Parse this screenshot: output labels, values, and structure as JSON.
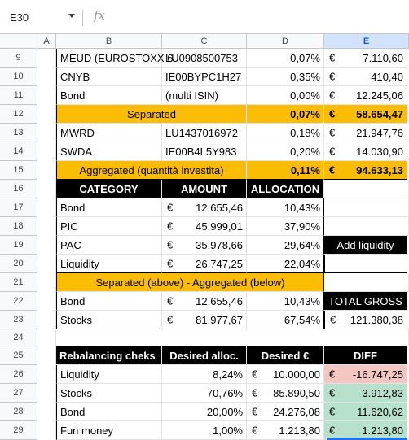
{
  "name_box": "E30",
  "fx_label": "fx",
  "columns": [
    "A",
    "B",
    "C",
    "D",
    "E"
  ],
  "rows": [
    "9",
    "10",
    "11",
    "12",
    "13",
    "14",
    "15",
    "16",
    "17",
    "18",
    "19",
    "20",
    "21",
    "22",
    "23",
    "24",
    "25",
    "26",
    "27",
    "28",
    "29"
  ],
  "currency": "€",
  "r9": {
    "b": "MEUD (EUROSTOXX 6",
    "c": "LU0908500753",
    "d": "0,07%",
    "e": "7.110,60"
  },
  "r10": {
    "b": "CNYB",
    "c": "IE00BYPC1H27",
    "d": "0,35%",
    "e": "410,40"
  },
  "r11": {
    "b": "Bond",
    "c": "(multi ISIN)",
    "d": "0,00%",
    "e": "12.245,06"
  },
  "r12": {
    "bc": "Separated",
    "d": "0,07%",
    "e": "58.654,47"
  },
  "r13": {
    "b": "MWRD",
    "c": "LU1437016972",
    "d": "0,18%",
    "e": "21.947,76"
  },
  "r14": {
    "b": "SWDA",
    "c": "IE00B4L5Y983",
    "d": "0,20%",
    "e": "14.030,90"
  },
  "r15": {
    "bc": "Aggregated (quantità investita)",
    "d": "0,11%",
    "e": "94.633,13"
  },
  "r16": {
    "b": "CATEGORY",
    "c": "AMOUNT",
    "d": "ALLOCATION"
  },
  "r17": {
    "b": "Bond",
    "c": "12.655,46",
    "d": "10,43%"
  },
  "r18": {
    "b": "PIC",
    "c": "45.999,01",
    "d": "37,90%"
  },
  "r19": {
    "b": "PAC",
    "c": "35.978,66",
    "d": "29,64%",
    "e": "Add liquidity"
  },
  "r20": {
    "b": "Liquidity",
    "c": "26.747,25",
    "d": "22,04%"
  },
  "r21": {
    "bd": "Separated (above) - Aggregated (below)"
  },
  "r22": {
    "b": "Bond",
    "c": "12.655,46",
    "d": "10,43%",
    "e": "TOTAL GROSS"
  },
  "r23": {
    "b": "Stocks",
    "c": "81.977,67",
    "d": "67,54%",
    "e": "121.380,38"
  },
  "r25": {
    "b": "Rebalancing cheks",
    "c": "Desired alloc.",
    "d": "Desired €",
    "e": "DIFF"
  },
  "r26": {
    "b": "Liquidity",
    "c": "8,24%",
    "d": "10.000,00",
    "e": "-16.747,25"
  },
  "r27": {
    "b": "Stocks",
    "c": "70,76%",
    "d": "85.890,50",
    "e": "3.912,83"
  },
  "r28": {
    "b": "Bond",
    "c": "20,00%",
    "d": "24.276,08",
    "e": "11.620,62"
  },
  "r29": {
    "b": "Fun money",
    "c": "1,00%",
    "d": "1.213,80",
    "e": "1.213,80"
  },
  "colors": {
    "gold": "#fbbc04",
    "header_black": "#000000",
    "neg": "#f4c7c3",
    "pos": "#b7e1cd",
    "selected_col": "#d3e3fd"
  }
}
